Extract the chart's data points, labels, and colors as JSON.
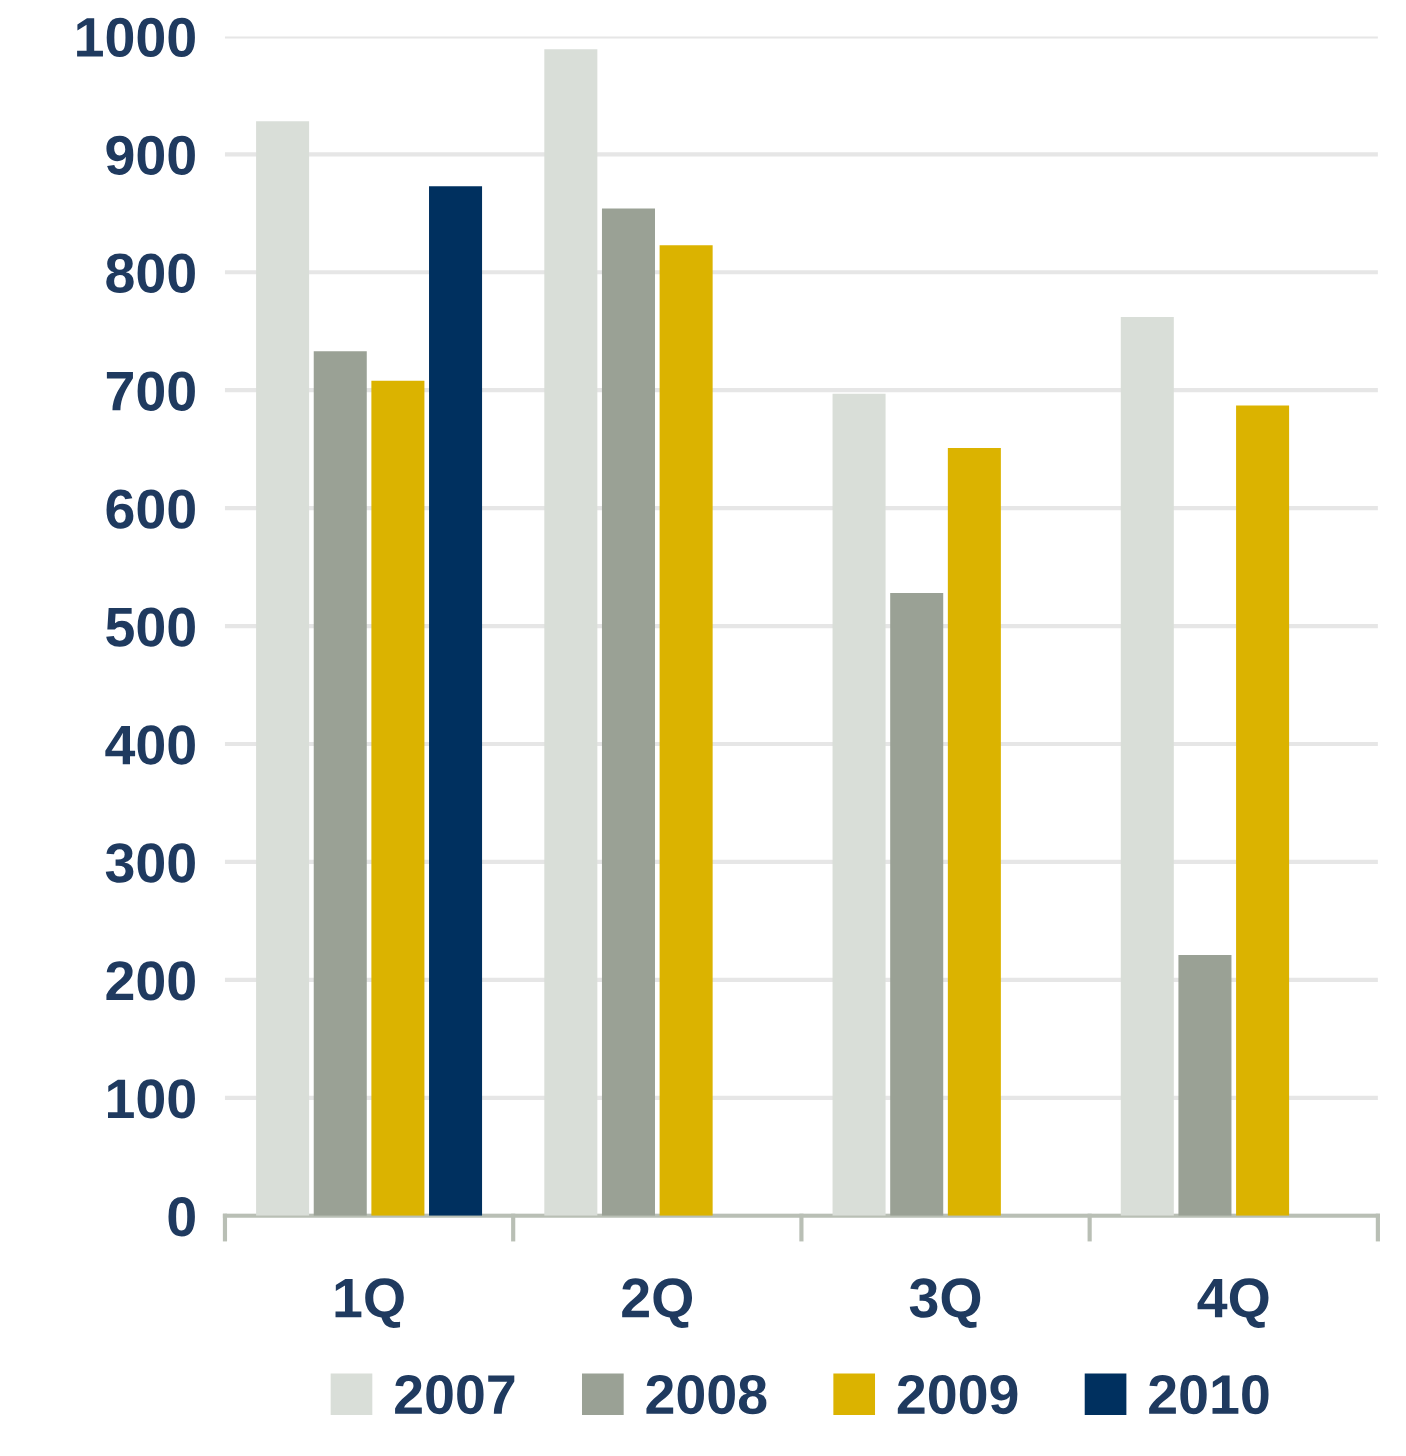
{
  "chart_data": {
    "type": "bar",
    "categories": [
      "1Q",
      "2Q",
      "3Q",
      "4Q"
    ],
    "series": [
      {
        "name": "2007",
        "color": "#d9ded8",
        "values": [
          928,
          989,
          697,
          762
        ]
      },
      {
        "name": "2008",
        "color": "#9aa195",
        "values": [
          733,
          854,
          528,
          221
        ]
      },
      {
        "name": "2009",
        "color": "#dbb300",
        "values": [
          708,
          823,
          651,
          687
        ]
      },
      {
        "name": "2010",
        "color": "#00305f",
        "values": [
          873,
          null,
          null,
          null
        ]
      }
    ],
    "ylim": [
      0,
      1000
    ],
    "yticks": [
      0,
      100,
      200,
      300,
      400,
      500,
      600,
      700,
      800,
      900,
      1000
    ],
    "grid": "y",
    "legend": "bottom"
  }
}
